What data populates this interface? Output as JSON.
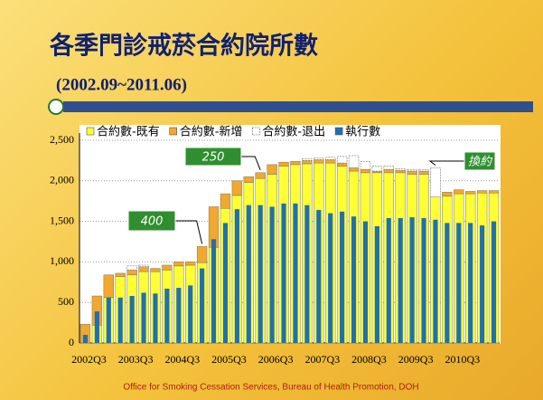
{
  "chart_data": {
    "type": "bar",
    "title": "各季門診戒菸合約院所數",
    "subtitle": "(2002.09~2011.06)",
    "footer": "Office for Smoking Cessation Services, Bureau of Health Promotion, DOH",
    "categories": [
      "2002Q3",
      null,
      null,
      null,
      "2003Q3",
      null,
      null,
      null,
      "2004Q3",
      null,
      null,
      null,
      "2005Q3",
      null,
      null,
      null,
      "2006Q3",
      null,
      null,
      null,
      "2007Q3",
      null,
      null,
      null,
      "2008Q3",
      null,
      null,
      null,
      "2009Q3",
      null,
      null,
      null,
      "2010Q3",
      null,
      null,
      null
    ],
    "series": [
      {
        "name": "合約數-既有",
        "color": "#ffff33",
        "values": [
          0,
          220,
          560,
          820,
          840,
          880,
          880,
          900,
          950,
          960,
          990,
          1180,
          1660,
          1820,
          1980,
          2030,
          2080,
          2180,
          2200,
          2210,
          2220,
          2220,
          2180,
          2120,
          2100,
          2100,
          2100,
          2100,
          2080,
          2080,
          1800,
          1810,
          1840,
          1840,
          1850,
          1850
        ]
      },
      {
        "name": "合約數-新增",
        "color": "#f0a830",
        "values": [
          230,
          360,
          280,
          40,
          60,
          60,
          40,
          60,
          50,
          40,
          200,
          500,
          180,
          180,
          70,
          70,
          120,
          50,
          40,
          40,
          40,
          40,
          40,
          40,
          40,
          20,
          40,
          30,
          40,
          40,
          0,
          50,
          50,
          30,
          30,
          30
        ]
      },
      {
        "name": "合約數-退出",
        "color": "#ffffff",
        "values": [
          0,
          0,
          0,
          0,
          50,
          20,
          0,
          0,
          0,
          0,
          0,
          0,
          0,
          0,
          0,
          0,
          0,
          0,
          0,
          20,
          20,
          30,
          80,
          150,
          100,
          60,
          40,
          20,
          20,
          20,
          360,
          0,
          0,
          0,
          0,
          0
        ]
      },
      {
        "name": "執行數",
        "color": "#1f6fb5",
        "values": [
          100,
          390,
          560,
          560,
          580,
          620,
          610,
          670,
          680,
          710,
          920,
          1280,
          1480,
          1650,
          1700,
          1700,
          1680,
          1720,
          1720,
          1700,
          1640,
          1600,
          1620,
          1560,
          1500,
          1440,
          1540,
          1540,
          1550,
          1540,
          1520,
          1480,
          1480,
          1480,
          1450,
          1500
        ]
      }
    ],
    "annotations": [
      "400",
      "250",
      "換約"
    ],
    "ylim": [
      0,
      2500
    ],
    "yticks": [
      0,
      500,
      {
        "value": 1000,
        "label": "1,000"
      },
      {
        "value": 1500,
        "label": "1,500"
      },
      {
        "value": 2000,
        "label": "2,000"
      },
      {
        "value": 2500,
        "label": "2,500"
      }
    ],
    "grid": true
  }
}
